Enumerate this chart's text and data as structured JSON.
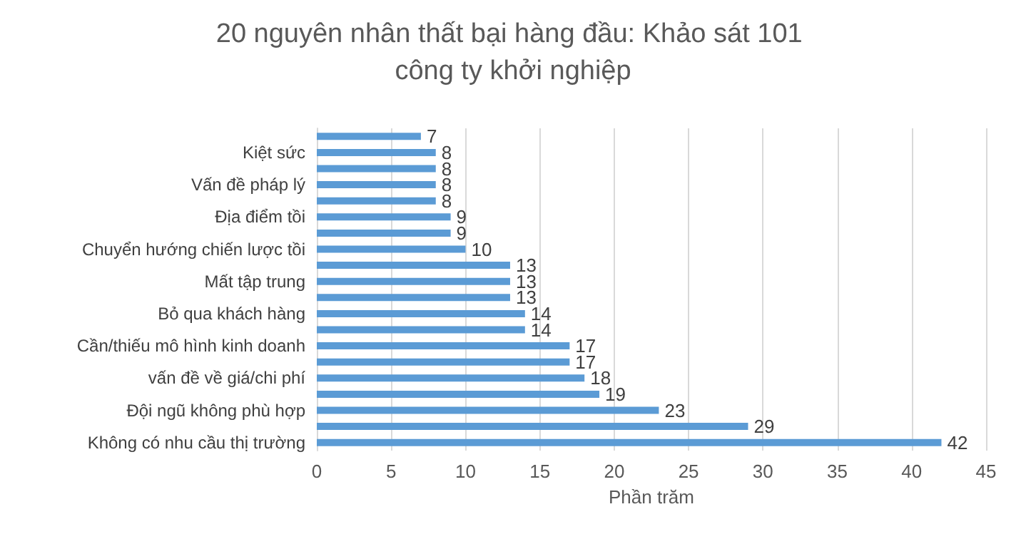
{
  "chart_data": {
    "type": "bar",
    "orientation": "horizontal",
    "title": "20 nguyên nhân thất bại hàng đầu: Khảo sát 101 công ty khởi nghiệp",
    "xlabel": "Phần trăm",
    "categories": [
      null,
      "Kiệt sức",
      null,
      "Vấn đề pháp lý",
      null,
      "Địa điểm tồi",
      null,
      "Chuyển hướng chiến lược tồi",
      null,
      "Mất tập trung",
      null,
      "Bỏ qua khách hàng",
      null,
      "Cần/thiếu mô hình kinh doanh",
      null,
      "vấn đề về giá/chi phí",
      null,
      "Đội ngũ không phù hợp",
      null,
      "Không có nhu cầu thị trường"
    ],
    "values": [
      7,
      8,
      8,
      8,
      8,
      9,
      9,
      10,
      13,
      13,
      13,
      14,
      14,
      17,
      17,
      18,
      19,
      23,
      29,
      42
    ],
    "color": "#5b9bd5",
    "xlim": [
      0,
      45
    ],
    "xticks": [
      0,
      5,
      10,
      15,
      20,
      25,
      30,
      35,
      40,
      45
    ],
    "grid": "x",
    "data_labels": true
  }
}
